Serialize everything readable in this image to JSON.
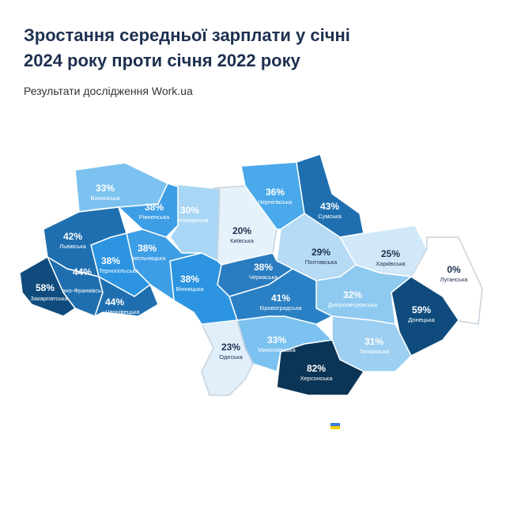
{
  "header": {
    "title": [
      "Зростання середньої зарплати у січні",
      "2024 року проти січня 2022 року"
    ],
    "subtitle": "Результати дослідження Work.ua"
  },
  "regions": [
    {
      "name": "Волинська",
      "value": "33%",
      "color": "#7cc2f0"
    },
    {
      "name": "Рівненська",
      "value": "38%",
      "color": "#3d9ee6"
    },
    {
      "name": "Житомирська",
      "value": "30%",
      "color": "#a9d6f5"
    },
    {
      "name": "Київська",
      "value": "20%",
      "color": "#e6f2fb"
    },
    {
      "name": "Чернігівська",
      "value": "36%",
      "color": "#4aa9ea"
    },
    {
      "name": "Сумська",
      "value": "43%",
      "color": "#1f6fb0"
    },
    {
      "name": "Харківська",
      "value": "25%",
      "color": "#d0e8f8"
    },
    {
      "name": "Луганська",
      "value": "0%",
      "color": "#ffffff"
    },
    {
      "name": "Донецька",
      "value": "59%",
      "color": "#0f4c7d"
    },
    {
      "name": "Полтавська",
      "value": "29%",
      "color": "#b5dbf5"
    },
    {
      "name": "Дніпропетровська",
      "value": "32%",
      "color": "#8ec9f0"
    },
    {
      "name": "Запорізька",
      "value": "31%",
      "color": "#9ccff1"
    },
    {
      "name": "Херсонська",
      "value": "82%",
      "color": "#0b3556"
    },
    {
      "name": "Миколаївська",
      "value": "33%",
      "color": "#7cc2f0"
    },
    {
      "name": "Одеська",
      "value": "23%",
      "color": "#e0effa"
    },
    {
      "name": "Кіровоградська",
      "value": "41%",
      "color": "#2a80c4"
    },
    {
      "name": "Черкаська",
      "value": "38%",
      "color": "#2a7cc0"
    },
    {
      "name": "Вінницька",
      "value": "38%",
      "color": "#2c94e0"
    },
    {
      "name": "Хмельницька",
      "value": "38%",
      "color": "#3d9ee6"
    },
    {
      "name": "Тернопільська",
      "value": "38%",
      "color": "#2c94e0"
    },
    {
      "name": "Львівська",
      "value": "42%",
      "color": "#1f6fb0"
    },
    {
      "name": "Івано-Франківська",
      "value": "44%",
      "color": "#1f6fb0"
    },
    {
      "name": "Закарпатська",
      "value": "58%",
      "color": "#0f4c7d"
    },
    {
      "name": "Чернівецька",
      "value": "44%",
      "color": "#1f6fb0"
    }
  ]
}
